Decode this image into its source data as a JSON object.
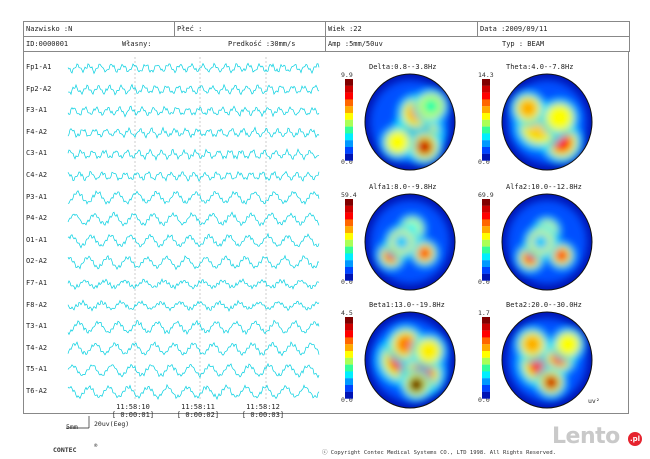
{
  "header": {
    "surname": "Nazwisko :N",
    "gender": "Płeć :",
    "age": "Wiek :22",
    "date": "Data :2009/09/11",
    "id": "ID:0000001",
    "owner": "Własny:",
    "speed": "Predkość :30mm/s",
    "amp": "Amp :5mm/50uv",
    "type": "Typ : BEAM"
  },
  "channels": [
    "Fp1-A1",
    "Fp2-A2",
    "F3-A1",
    "F4-A2",
    "C3-A1",
    "C4-A2",
    "P3-A1",
    "P4-A2",
    "O1-A1",
    "O2-A2",
    "F7-A1",
    "F8-A2",
    "T3-A1",
    "T4-A2",
    "T5-A1",
    "T6-A2"
  ],
  "times": [
    {
      "clock": "11:58:10",
      "elapsed": "[ 0:00:01]"
    },
    {
      "clock": "11:58:11",
      "elapsed": "[ 0:00:02]"
    },
    {
      "clock": "11:58:12",
      "elapsed": "[ 0:00:03]"
    }
  ],
  "scale": {
    "length": "5mm",
    "amplitude": "20uv(Eeg)"
  },
  "maps": [
    {
      "title": "Delta:0.8--3.8Hz",
      "max": "9.9",
      "min": "0.0"
    },
    {
      "title": "Theta:4.0--7.8Hz",
      "max": "14.3",
      "min": "0.0"
    },
    {
      "title": "Alfa1:8.0--9.8Hz",
      "max": "59.4",
      "min": "0.0"
    },
    {
      "title": "Alfa2:10.0--12.8Hz",
      "max": "69.9",
      "min": "0.0"
    },
    {
      "title": "Beta1:13.0--19.8Hz",
      "max": "4.5",
      "min": "0.0"
    },
    {
      "title": "Beta2:20.0--30.0Hz",
      "max": "1.7",
      "min": "0.0"
    }
  ],
  "unit": "uv²",
  "footer": {
    "brand": "CONTEC",
    "reg": "®",
    "copyright": "ⓒ Copyright Contec Medical Systems CO., LTD 1998. All Rights Reserved."
  },
  "watermark": {
    "text": "Lento",
    "tld": ".pl"
  },
  "colors": {
    "trace": "#00cfe0",
    "background": "#0014b4"
  }
}
